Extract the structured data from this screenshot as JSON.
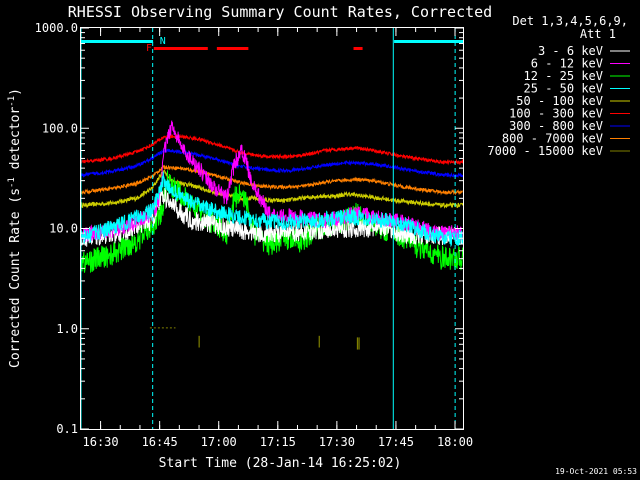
{
  "chart_data": {
    "type": "line",
    "title": "RHESSI Observing Summary Count Rates, Corrected",
    "xlabel": "Start Time (28-Jan-14 16:25:02)",
    "ylabel": "Corrected Count Rate (s⁻¹ detector⁻¹)",
    "ylabel_main": "Corrected Count Rate (s",
    "ylabel_exp": "-1",
    "ylabel_mid": " detector",
    "ylabel_end": ")",
    "yscale": "log",
    "ylim": [
      0.1,
      1000
    ],
    "xlim_minutes": [
      0,
      97
    ],
    "x_ticks": [
      {
        "label": "16:30",
        "minute": 4.97
      },
      {
        "label": "16:45",
        "minute": 19.97
      },
      {
        "label": "17:00",
        "minute": 34.97
      },
      {
        "label": "17:15",
        "minute": 49.97
      },
      {
        "label": "17:30",
        "minute": 64.97
      },
      {
        "label": "17:45",
        "minute": 79.97
      },
      {
        "label": "18:00",
        "minute": 94.97
      }
    ],
    "y_ticks": [
      "1000.0",
      "100.0",
      "10.0",
      "1.0",
      "0.1"
    ],
    "legend_header": [
      "Det 1,3,4,5,6,9,",
      "Att 1"
    ],
    "series": [
      {
        "name": "3 - 6 keV",
        "color": "#ffffff",
        "x": [
          0,
          10,
          18,
          20.5,
          24,
          28,
          34,
          38,
          45,
          52,
          58,
          64,
          70,
          73,
          75,
          77,
          80,
          85,
          90,
          97
        ],
        "y": [
          8,
          9,
          12,
          22,
          16,
          12,
          11,
          10,
          9,
          9,
          9.5,
          10,
          10,
          10,
          10,
          10,
          9,
          8.5,
          8.5,
          8.5
        ]
      },
      {
        "name": "6 - 12 keV",
        "color": "#ff00ff",
        "x": [
          0,
          10,
          18,
          20,
          21,
          23,
          26,
          30,
          34,
          37,
          39,
          41,
          44,
          48,
          55,
          62,
          66,
          70,
          75,
          80,
          87,
          91,
          97
        ],
        "y": [
          8.5,
          10,
          14,
          20,
          55,
          110,
          60,
          40,
          25,
          20,
          45,
          60,
          25,
          14,
          13,
          12,
          13,
          14,
          13,
          12,
          10,
          9,
          9
        ]
      },
      {
        "name": "12 - 25 keV",
        "color": "#00ff00",
        "x": [
          0,
          8,
          15,
          19,
          20.5,
          22,
          25,
          30,
          34,
          37,
          39,
          41,
          44,
          48,
          52,
          56,
          60,
          64,
          67,
          70,
          74,
          77,
          80,
          84,
          88,
          92,
          97
        ],
        "y": [
          4.5,
          5.5,
          8,
          12,
          14,
          30,
          22,
          15,
          11,
          9,
          20,
          24,
          9,
          7,
          8,
          7.5,
          10,
          11,
          12,
          14,
          11,
          10,
          9,
          7,
          6,
          5,
          5
        ]
      },
      {
        "name": "25 - 50 keV",
        "color": "#00ffff",
        "x": [
          0,
          10,
          18,
          20,
          21,
          22,
          28,
          34,
          40,
          46,
          52,
          58,
          64,
          67,
          70,
          74,
          78,
          82,
          88,
          92,
          97
        ],
        "y": [
          8,
          11,
          15,
          23,
          32,
          26,
          18,
          15,
          13,
          12,
          11.5,
          12,
          12.5,
          13,
          13,
          12.5,
          12,
          11,
          9,
          8,
          8
        ]
      },
      {
        "name": "50 - 100 keV",
        "color": "#cccc00",
        "x": [
          0,
          8,
          14,
          18,
          21,
          23,
          28,
          32,
          36,
          40,
          44,
          48,
          52,
          56,
          60,
          64,
          68,
          72,
          76,
          80,
          86,
          92,
          97
        ],
        "y": [
          17,
          18,
          20,
          25,
          38,
          30,
          27,
          24,
          22,
          20,
          20,
          19,
          19,
          20,
          21,
          21,
          22,
          21,
          20,
          19,
          18,
          17,
          17
        ]
      },
      {
        "name": "100 - 300 keV",
        "color": "#ff0000",
        "x": [
          0,
          8,
          14,
          18,
          21,
          25,
          30,
          35,
          40,
          44,
          48,
          53,
          58,
          62,
          66,
          70,
          74,
          78,
          82,
          88,
          92,
          97
        ],
        "y": [
          46,
          50,
          58,
          68,
          82,
          83,
          78,
          68,
          58,
          54,
          52,
          52,
          55,
          60,
          62,
          64,
          60,
          56,
          52,
          48,
          46,
          46
        ]
      },
      {
        "name": "300 - 800 keV",
        "color": "#0000ff",
        "x": [
          0,
          8,
          14,
          18,
          21,
          25,
          30,
          35,
          40,
          44,
          48,
          53,
          58,
          62,
          66,
          70,
          74,
          78,
          82,
          88,
          92,
          97
        ],
        "y": [
          34,
          37,
          42,
          50,
          60,
          58,
          54,
          48,
          42,
          40,
          38,
          38,
          40,
          43,
          45,
          45,
          44,
          42,
          39,
          36,
          34,
          34
        ]
      },
      {
        "name": "800 - 7000 keV",
        "color": "#ff8000",
        "x": [
          0,
          8,
          14,
          18,
          21,
          25,
          30,
          35,
          40,
          44,
          48,
          53,
          58,
          62,
          66,
          70,
          74,
          78,
          82,
          88,
          92,
          97
        ],
        "y": [
          23,
          25,
          28,
          33,
          41,
          40,
          37,
          33,
          29,
          27,
          26,
          26,
          27,
          29,
          30,
          31,
          30,
          28,
          26,
          24,
          23,
          23
        ]
      },
      {
        "name": "7000 - 15000 keV",
        "color": "#808000",
        "x": [
          17.5,
          18,
          18.5,
          19,
          19.5,
          20,
          20.5,
          21,
          21.5,
          22,
          22.5,
          23,
          23.5,
          24
        ],
        "y": [
          1.02,
          1.02,
          1.02,
          1.02,
          1.02,
          1.02,
          1.02,
          1.02,
          1.02,
          1.02,
          1.02,
          1.02,
          1.02,
          1.02
        ]
      }
    ],
    "spikes_7000_15000": [
      {
        "minute": 30,
        "low": 0.65,
        "high": 0.85
      },
      {
        "minute": 60.5,
        "low": 0.65,
        "high": 0.85
      },
      {
        "minute": 70.2,
        "low": 0.62,
        "high": 0.82
      },
      {
        "minute": 70.6,
        "low": 0.62,
        "high": 0.82
      }
    ],
    "night_bars": [
      {
        "from": -2,
        "to": 18.3
      },
      {
        "from": 79.5,
        "to": 97
      }
    ],
    "flare_bars": [
      {
        "from": 18.5,
        "to": 32.2
      },
      {
        "from": 34.5,
        "to": 42.5
      },
      {
        "from": 69.2,
        "to": 71.5
      }
    ],
    "vlines_solid": [
      0,
      79.3
    ],
    "vlines_dashed": [
      18.2,
      95.0
    ],
    "markers": [
      {
        "label": "F",
        "minute": 16.5,
        "color": "#ff0000"
      },
      {
        "label": "N",
        "minute": 20.0,
        "color": "#00ffff"
      }
    ],
    "footer_timestamp": "19-Oct-2021 05:53"
  }
}
